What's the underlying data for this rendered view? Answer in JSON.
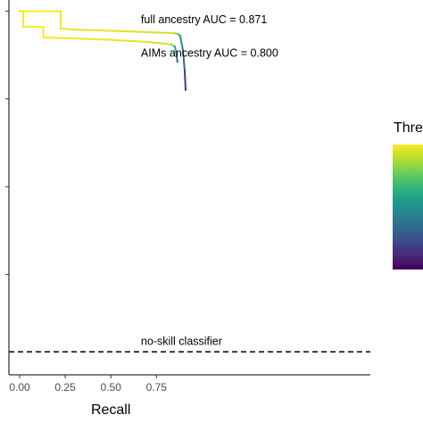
{
  "chart_data": {
    "type": "line",
    "xlabel": "Recall",
    "ylabel": "",
    "xlim": [
      0,
      1.0
    ],
    "ylim": [
      0.0,
      1.0
    ],
    "x_ticks": [
      0.0,
      0.25,
      0.5,
      0.75
    ],
    "x_tick_labels": [
      "0.00",
      "0.25",
      "0.50",
      "0.75"
    ],
    "y_ticks": [
      0.25,
      0.5,
      0.75,
      1.0
    ],
    "grid": false,
    "series": [
      {
        "x": [
          0.0,
          0.0,
          0.225,
          0.225,
          0.3,
          0.5,
          0.7,
          0.85,
          0.868,
          0.88,
          0.895,
          0.905,
          0.91
        ],
        "y": [
          1.0,
          0.9995,
          0.9995,
          0.95,
          0.947,
          0.944,
          0.94,
          0.937,
          0.935,
          0.93,
          0.89,
          0.83,
          0.775
        ],
        "color_value": [
          1.0,
          1.0,
          1.0,
          0.98,
          0.97,
          0.96,
          0.95,
          0.93,
          0.8,
          0.6,
          0.4,
          0.25,
          0.1
        ]
      },
      {
        "x": [
          0.0,
          0.02,
          0.02,
          0.13,
          0.13,
          0.3,
          0.5,
          0.7,
          0.83,
          0.85,
          0.86,
          0.865
        ],
        "y": [
          1.0,
          1.0,
          0.955,
          0.955,
          0.925,
          0.922,
          0.918,
          0.912,
          0.905,
          0.9,
          0.878,
          0.855
        ],
        "color_value": [
          1.0,
          1.0,
          1.0,
          1.0,
          0.99,
          0.98,
          0.97,
          0.96,
          0.9,
          0.75,
          0.45,
          0.2
        ]
      }
    ],
    "annotations": [
      {
        "text": "full ancestry AUC = 0.871",
        "x": 0.665,
        "y": 0.965
      },
      {
        "text": "AIMs ancestry AUC = 0.800",
        "x": 0.665,
        "y": 0.87
      },
      {
        "text": "no-skill classifier",
        "x": 0.665,
        "y": 0.05
      }
    ],
    "baseline": {
      "y": 0.03,
      "style": "dashed",
      "color": "#000000"
    },
    "colorbar": {
      "title": "Thre",
      "colors": [
        "#fde725",
        "#b5de2b",
        "#6ece58",
        "#35b779",
        "#1f9e89",
        "#26828e",
        "#31688e",
        "#3e4989",
        "#482878",
        "#440154"
      ]
    }
  }
}
